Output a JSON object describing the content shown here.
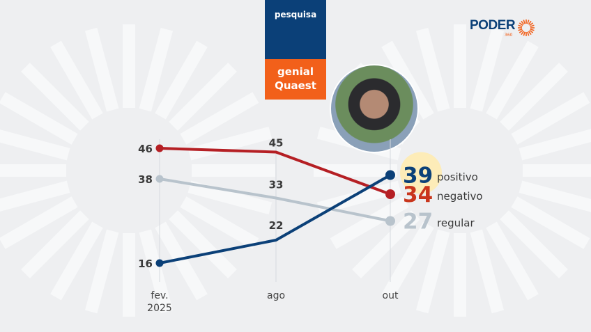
{
  "header": {
    "badge_label": "pesquisa",
    "pollster_line1": "genial",
    "pollster_line2": "Quaest",
    "logo": "PODER",
    "logo_sub": "360"
  },
  "colors": {
    "positivo": "#0b4078",
    "negativo": "#b51f24",
    "regular": "#b8c3cc",
    "highlight": "#fdecb8",
    "accent": "#f2601a"
  },
  "chart_data": {
    "type": "line",
    "categories": [
      "fev. 2025",
      "ago",
      "out"
    ],
    "category_lines": [
      [
        "fev.",
        "2025"
      ],
      [
        "ago"
      ],
      [
        "out"
      ]
    ],
    "series": [
      {
        "name": "positivo",
        "values": [
          16,
          22,
          39
        ]
      },
      {
        "name": "negativo",
        "values": [
          46,
          45,
          34
        ]
      },
      {
        "name": "regular",
        "values": [
          38,
          33,
          27
        ]
      }
    ],
    "xlabel": "",
    "ylabel": "",
    "grid": "vertical",
    "legend": "right"
  }
}
